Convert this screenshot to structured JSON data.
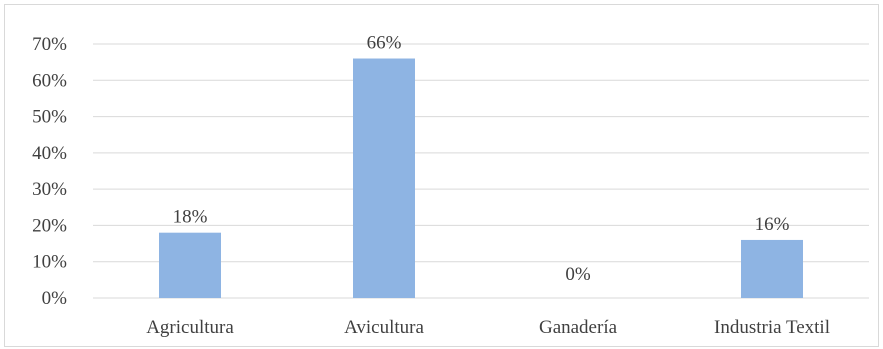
{
  "chart_data": {
    "type": "bar",
    "categories": [
      "Agricultura",
      "Avicultura",
      "Ganadería",
      "Industria Textil"
    ],
    "values": [
      18,
      66,
      0,
      16
    ],
    "data_labels": [
      "18%",
      "66%",
      "0%",
      "16%"
    ],
    "y_tick_labels": [
      "0%",
      "10%",
      "20%",
      "30%",
      "40%",
      "50%",
      "60%",
      "70%"
    ],
    "ylim": [
      0,
      70
    ],
    "y_unit": "%",
    "grid": true,
    "legend": "none",
    "bar_color": "#8EB4E3",
    "gridline_color": "#D9D9D9",
    "text_color": "#404040"
  }
}
